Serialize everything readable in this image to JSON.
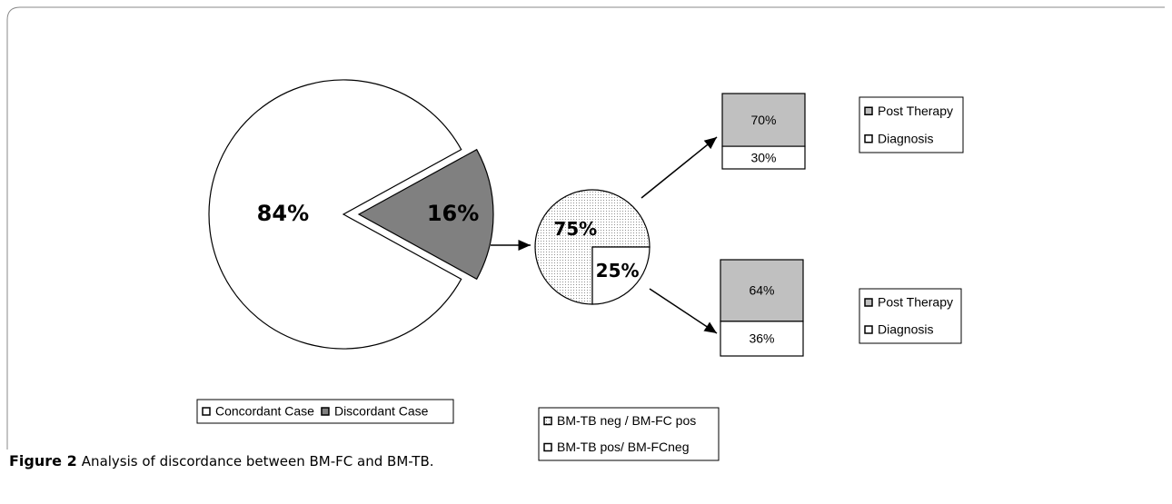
{
  "chart_data": [
    {
      "type": "pie",
      "categories": [
        "Concordant Case",
        "Discordant Case"
      ],
      "values": [
        84,
        16
      ],
      "value_labels": [
        "84%",
        "16%"
      ],
      "colors": [
        "#ffffff",
        "#808080"
      ],
      "fills": [
        "solid",
        "solid"
      ]
    },
    {
      "type": "pie",
      "categories": [
        "BM-TB neg / BM-FC pos",
        "BM-TB pos/ BM-FCneg"
      ],
      "values": [
        75,
        25
      ],
      "value_labels": [
        "75%",
        "25%"
      ],
      "colors": [
        "#909090",
        "#ffffff"
      ],
      "fills": [
        "dots",
        "solid"
      ]
    },
    {
      "type": "stacked-bar",
      "series": [
        {
          "name": "Post Therapy",
          "color": "#c0c0c0",
          "values": [
            70
          ],
          "value_labels": [
            "70%"
          ]
        },
        {
          "name": "Diagnosis",
          "color": "#ffffff",
          "values": [
            30
          ],
          "value_labels": [
            "30%"
          ]
        }
      ]
    },
    {
      "type": "stacked-bar",
      "series": [
        {
          "name": "Post Therapy",
          "color": "#c0c0c0",
          "values": [
            64
          ],
          "value_labels": [
            "64%"
          ]
        },
        {
          "name": "Diagnosis",
          "color": "#ffffff",
          "values": [
            36
          ],
          "value_labels": [
            "36%"
          ]
        }
      ]
    }
  ],
  "caption": {
    "label": "Figure 2",
    "text": "Analysis of discordance between BM-FC and BM-TB."
  }
}
